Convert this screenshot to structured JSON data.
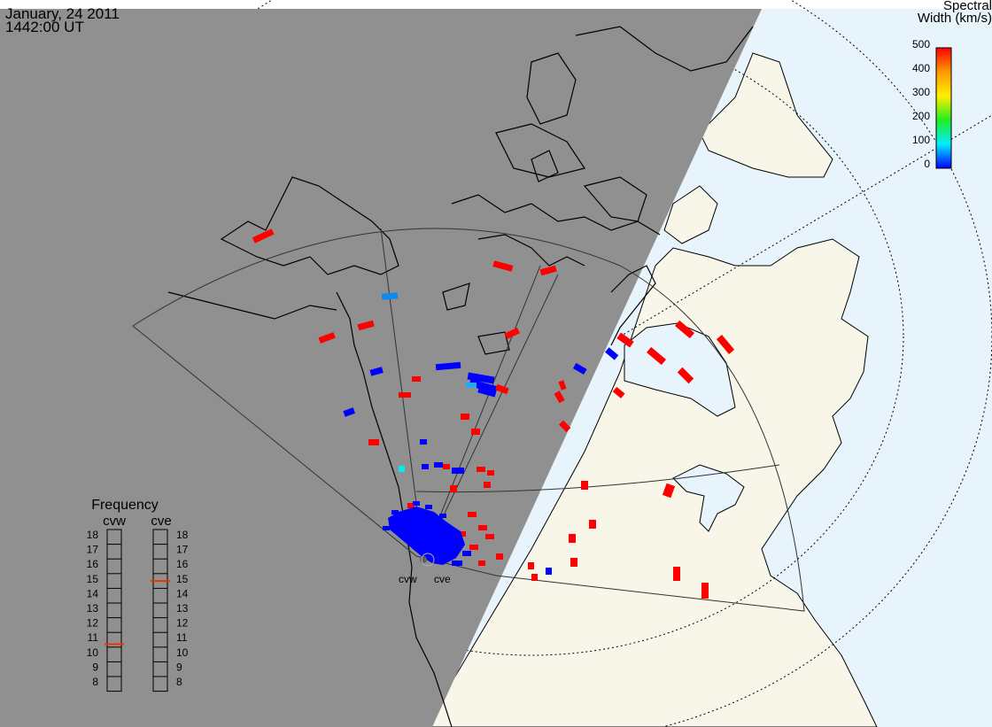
{
  "header": {
    "date": "January, 24 2011",
    "time": "1442:00 UT"
  },
  "colorbar": {
    "title_line1": "Spectral",
    "title_line2": "Width (km/s)",
    "ticks": [
      "500",
      "400",
      "300",
      "200",
      "100",
      "0"
    ],
    "range": [
      0,
      500
    ],
    "colors": [
      "#ff0000",
      "#ff9900",
      "#ffee00",
      "#22ee22",
      "#00eeff",
      "#0000ff"
    ]
  },
  "frequency_panel": {
    "title": "Frequency",
    "radars": [
      {
        "name": "cvw",
        "value": 10.7
      },
      {
        "name": "cve",
        "value": 15.0
      }
    ],
    "scale": [
      "18",
      "17",
      "16",
      "15",
      "14",
      "13",
      "12",
      "11",
      "10",
      "9",
      "8"
    ],
    "min": 8,
    "max": 18
  },
  "radars": [
    {
      "code": "cvw",
      "label": "cvw"
    },
    {
      "code": "cve",
      "label": "cve"
    }
  ],
  "colors": {
    "night": "#909090",
    "ocean_day": "#e7f4fb",
    "land_day": "#f7f6e8",
    "high_width": "#ff0000",
    "low_width": "#0000ff",
    "mid_width": "#0099ee",
    "marker_line": "#ee3300"
  }
}
